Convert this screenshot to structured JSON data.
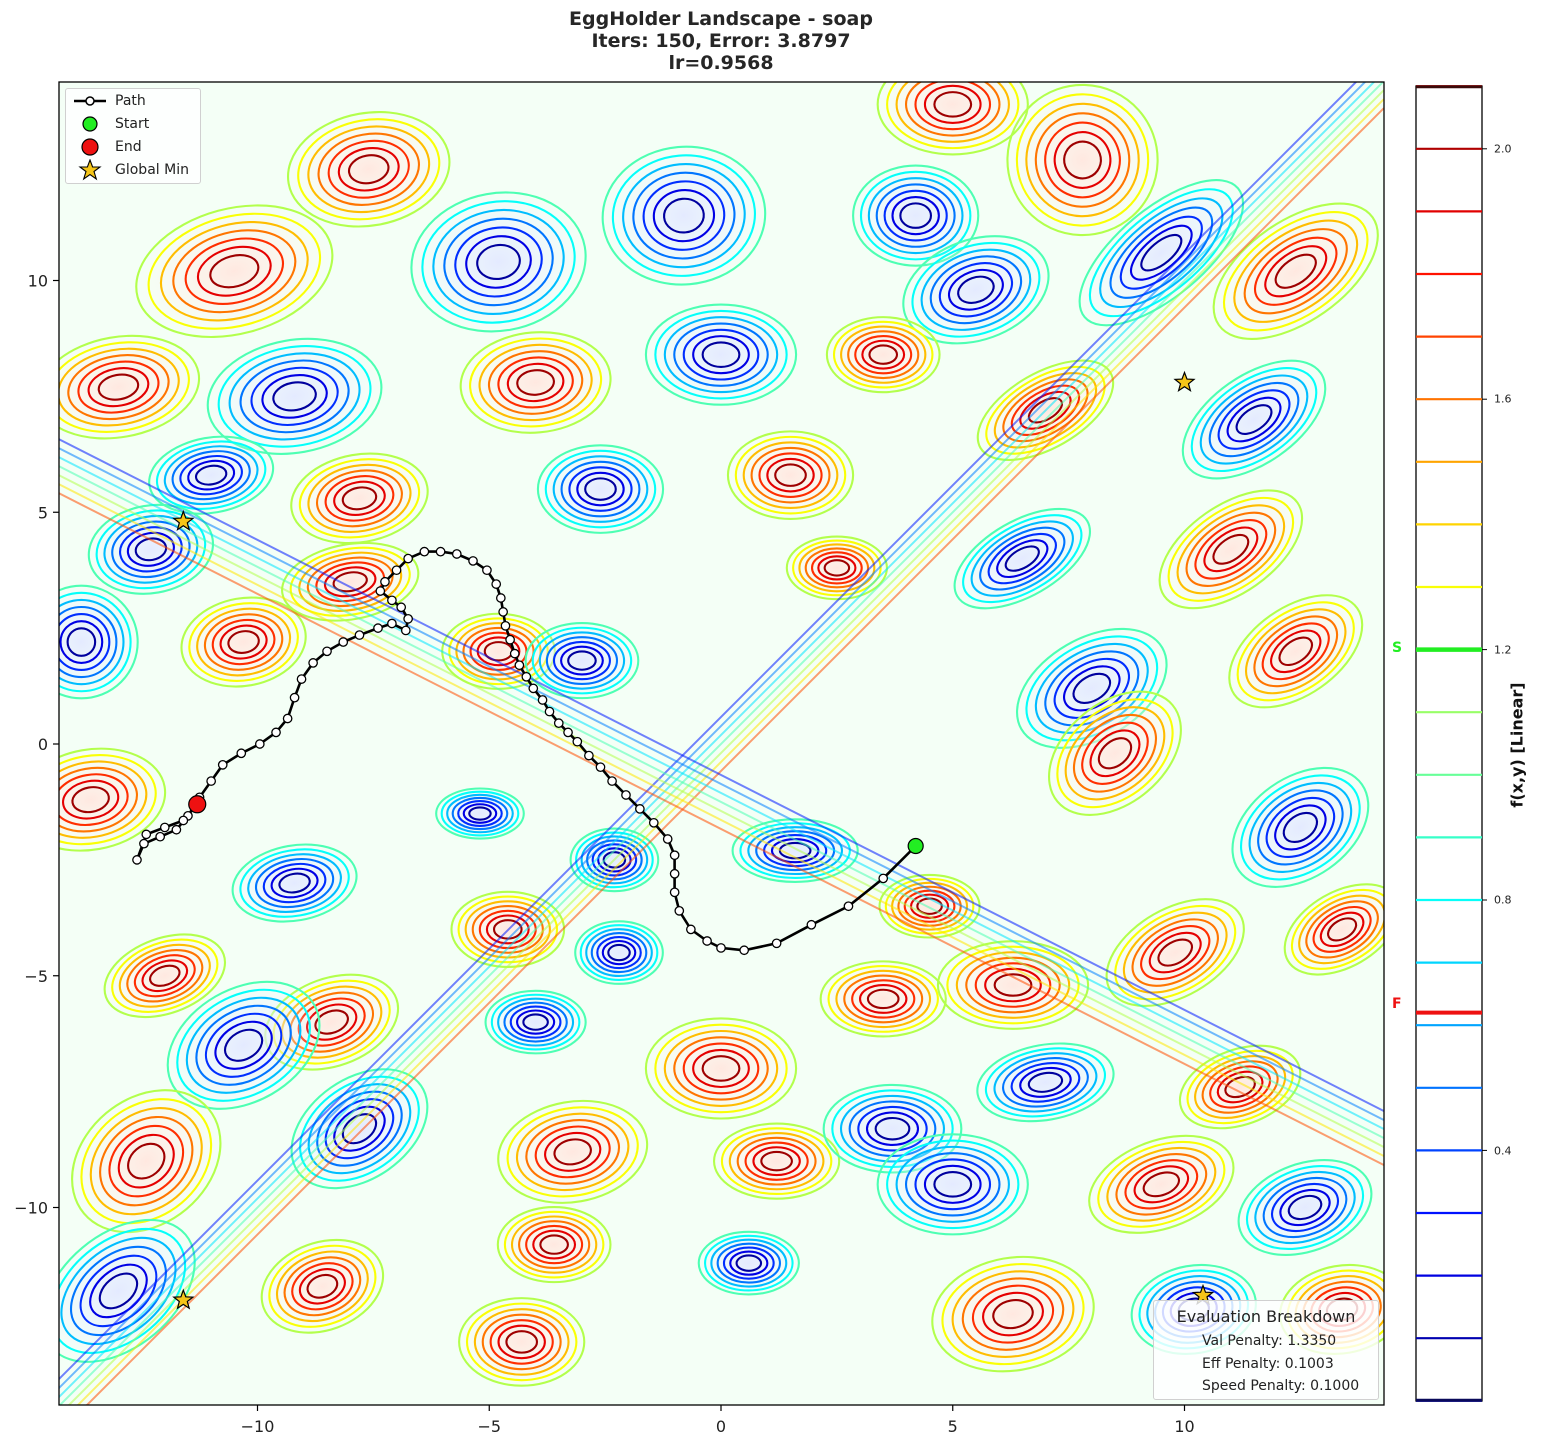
{
  "title": {
    "line1": "EggHolder Landscape - soap",
    "line2": "Iters: 150, Error: 3.8797",
    "line3": "lr=0.9568"
  },
  "legend": {
    "items": [
      {
        "label": "Path",
        "symbol": "line-with-circle"
      },
      {
        "label": "Start",
        "symbol": "green-circle"
      },
      {
        "label": "End",
        "symbol": "red-circle"
      },
      {
        "label": "Global Min",
        "symbol": "gold-star"
      }
    ]
  },
  "evaluation": {
    "header": "Evaluation Breakdown",
    "rows": [
      "Val Penalty: 1.3350",
      "Eff Penalty: 0.1003",
      "Speed Penalty: 0.1000"
    ]
  },
  "colorbar": {
    "label": "f(x,y) [Linear]",
    "ticks": [
      "2.0",
      "1.6",
      "1.2",
      "0.8",
      "0.4"
    ],
    "start_marker": "S",
    "final_marker": "F",
    "start_value": 1.2,
    "final_value": 0.62
  },
  "colors": {
    "start": "#22ee22",
    "end": "#ee1111",
    "star": "#f5c518",
    "path": "#000000"
  },
  "chart_data": {
    "type": "contour",
    "title": "EggHolder Landscape - soap / Iters: 150, Error: 3.8797 / lr=0.9568",
    "xlabel": "",
    "ylabel": "",
    "xlim": [
      -14.3,
      14.3
    ],
    "ylim": [
      -14.3,
      14.3
    ],
    "xticks": [
      -10,
      -5,
      0,
      5,
      10
    ],
    "yticks": [
      -10,
      -5,
      0,
      5,
      10
    ],
    "colorbar": {
      "label": "f(x,y) [Linear]",
      "range": [
        0.0,
        2.1
      ],
      "ticks": [
        0.4,
        0.8,
        1.2,
        1.6,
        2.0
      ],
      "levels_step": 0.1,
      "cmap": "jet"
    },
    "grid": false,
    "legend_position": "upper left",
    "start": {
      "x": 4.2,
      "y": -2.2,
      "value": 1.2
    },
    "end": {
      "x": -11.3,
      "y": -1.3,
      "value": 0.62
    },
    "global_minima": [
      {
        "x": 10.0,
        "y": 7.8
      },
      {
        "x": -11.6,
        "y": 4.8
      },
      {
        "x": -11.6,
        "y": -12.0
      },
      {
        "x": 10.4,
        "y": -11.9
      }
    ],
    "path_points": [
      [
        4.2,
        -2.2
      ],
      [
        3.5,
        -2.9
      ],
      [
        2.75,
        -3.5
      ],
      [
        1.95,
        -3.9
      ],
      [
        1.2,
        -4.3
      ],
      [
        0.5,
        -4.45
      ],
      [
        0.0,
        -4.4
      ],
      [
        -0.3,
        -4.25
      ],
      [
        -0.65,
        -4.0
      ],
      [
        -0.9,
        -3.6
      ],
      [
        -1.0,
        -3.2
      ],
      [
        -1.0,
        -2.8
      ],
      [
        -1.0,
        -2.4
      ],
      [
        -1.15,
        -2.05
      ],
      [
        -1.45,
        -1.7
      ],
      [
        -1.75,
        -1.4
      ],
      [
        -2.05,
        -1.1
      ],
      [
        -2.35,
        -0.8
      ],
      [
        -2.6,
        -0.5
      ],
      [
        -2.85,
        -0.25
      ],
      [
        -3.1,
        0.05
      ],
      [
        -3.3,
        0.25
      ],
      [
        -3.5,
        0.45
      ],
      [
        -3.7,
        0.7
      ],
      [
        -3.85,
        0.95
      ],
      [
        -4.05,
        1.2
      ],
      [
        -4.2,
        1.45
      ],
      [
        -4.35,
        1.7
      ],
      [
        -4.45,
        1.95
      ],
      [
        -4.55,
        2.25
      ],
      [
        -4.65,
        2.55
      ],
      [
        -4.7,
        2.85
      ],
      [
        -4.75,
        3.15
      ],
      [
        -4.85,
        3.45
      ],
      [
        -5.05,
        3.75
      ],
      [
        -5.35,
        3.95
      ],
      [
        -5.7,
        4.1
      ],
      [
        -6.05,
        4.15
      ],
      [
        -6.4,
        4.15
      ],
      [
        -6.75,
        4.0
      ],
      [
        -7.0,
        3.75
      ],
      [
        -7.25,
        3.5
      ],
      [
        -7.35,
        3.3
      ],
      [
        -7.1,
        3.1
      ],
      [
        -6.9,
        2.95
      ],
      [
        -6.75,
        2.7
      ],
      [
        -6.8,
        2.45
      ],
      [
        -7.1,
        2.6
      ],
      [
        -7.4,
        2.5
      ],
      [
        -7.8,
        2.35
      ],
      [
        -8.15,
        2.2
      ],
      [
        -8.5,
        2.0
      ],
      [
        -8.8,
        1.75
      ],
      [
        -9.05,
        1.4
      ],
      [
        -9.2,
        1.0
      ],
      [
        -9.35,
        0.55
      ],
      [
        -9.6,
        0.25
      ],
      [
        -9.95,
        0.0
      ],
      [
        -10.35,
        -0.2
      ],
      [
        -10.75,
        -0.45
      ],
      [
        -11.0,
        -0.8
      ],
      [
        -11.25,
        -1.15
      ],
      [
        -11.5,
        -1.55
      ],
      [
        -11.75,
        -1.85
      ],
      [
        -12.1,
        -2.0
      ],
      [
        -12.45,
        -2.15
      ],
      [
        -12.6,
        -2.5
      ],
      [
        -12.4,
        -1.95
      ],
      [
        -12.0,
        -1.8
      ],
      [
        -11.6,
        -1.65
      ],
      [
        -11.3,
        -1.3
      ]
    ]
  }
}
